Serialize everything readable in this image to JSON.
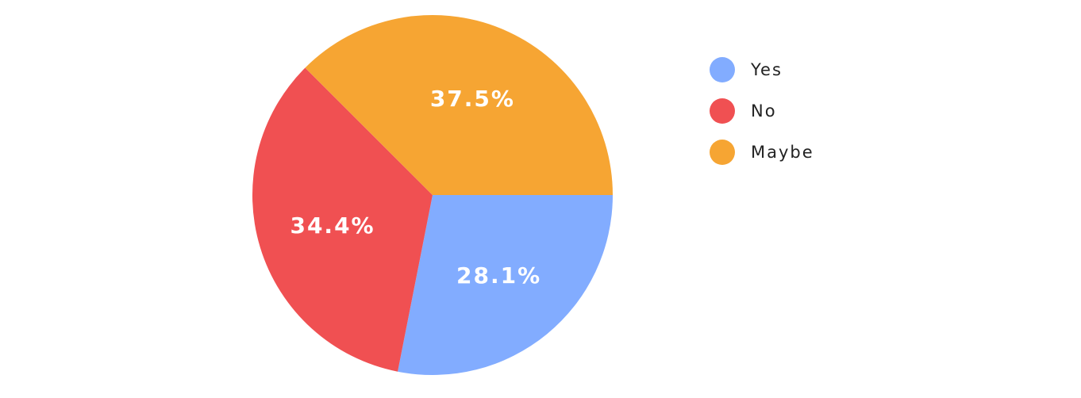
{
  "chart_data": {
    "type": "pie",
    "categories": [
      "Yes",
      "No",
      "Maybe"
    ],
    "values": [
      28.1,
      34.4,
      37.5
    ],
    "labels": [
      "28.1%",
      "34.4%",
      "37.5%"
    ],
    "colors": [
      "#82ACFF",
      "#F05052",
      "#F6A533"
    ],
    "legend_position": "right"
  },
  "legend": {
    "items": [
      {
        "label": "Yes",
        "color": "#82ACFF"
      },
      {
        "label": "No",
        "color": "#F05052"
      },
      {
        "label": "Maybe",
        "color": "#F6A533"
      }
    ]
  }
}
